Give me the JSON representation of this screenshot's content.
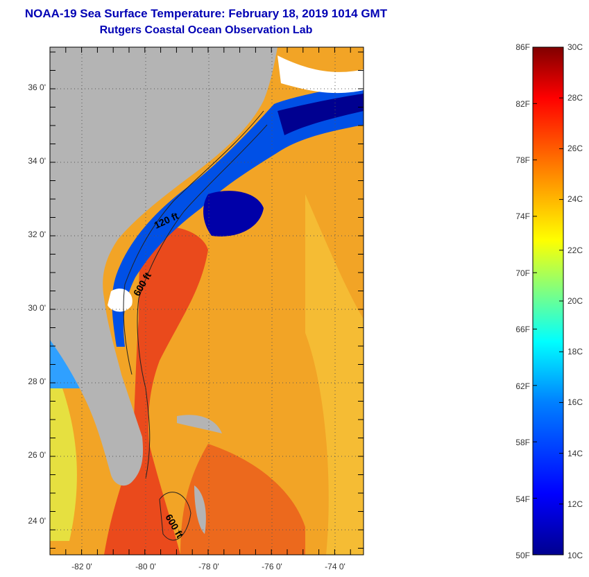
{
  "header": {
    "title": "NOAA-19 Sea Surface Temperature:  February 18, 2019 1014 GMT",
    "subtitle": "Rutgers Coastal Ocean Observation Lab"
  },
  "map": {
    "lat_labels": [
      "36 0'",
      "34 0'",
      "32 0'",
      "30 0'",
      "28 0'",
      "26 0'",
      "24 0'"
    ],
    "lon_labels": [
      "-82 0'",
      "-80 0'",
      "-78 0'",
      "-76 0'",
      "-74 0'"
    ],
    "contour_labels": [
      "120 ft",
      "600 ft",
      "600 ft"
    ]
  },
  "colorbar": {
    "f_labels": [
      "86F",
      "82F",
      "78F",
      "74F",
      "70F",
      "66F",
      "62F",
      "58F",
      "54F",
      "50F"
    ],
    "c_labels": [
      "30C",
      "28C",
      "26C",
      "24C",
      "22C",
      "20C",
      "18C",
      "16C",
      "14C",
      "12C",
      "10C"
    ],
    "colors": [
      "#00008f",
      "#0000ff",
      "#0080ff",
      "#00ffff",
      "#80ff80",
      "#ffff00",
      "#ff8000",
      "#ff0000",
      "#800000"
    ]
  },
  "colors": {
    "land": "#b4b4b4",
    "warm_sea": "#f5a020",
    "gulf_stream": "#e8461a",
    "cold_shelf": "#0050e6",
    "cloud": "#ffffff",
    "title": "#0000b4"
  }
}
